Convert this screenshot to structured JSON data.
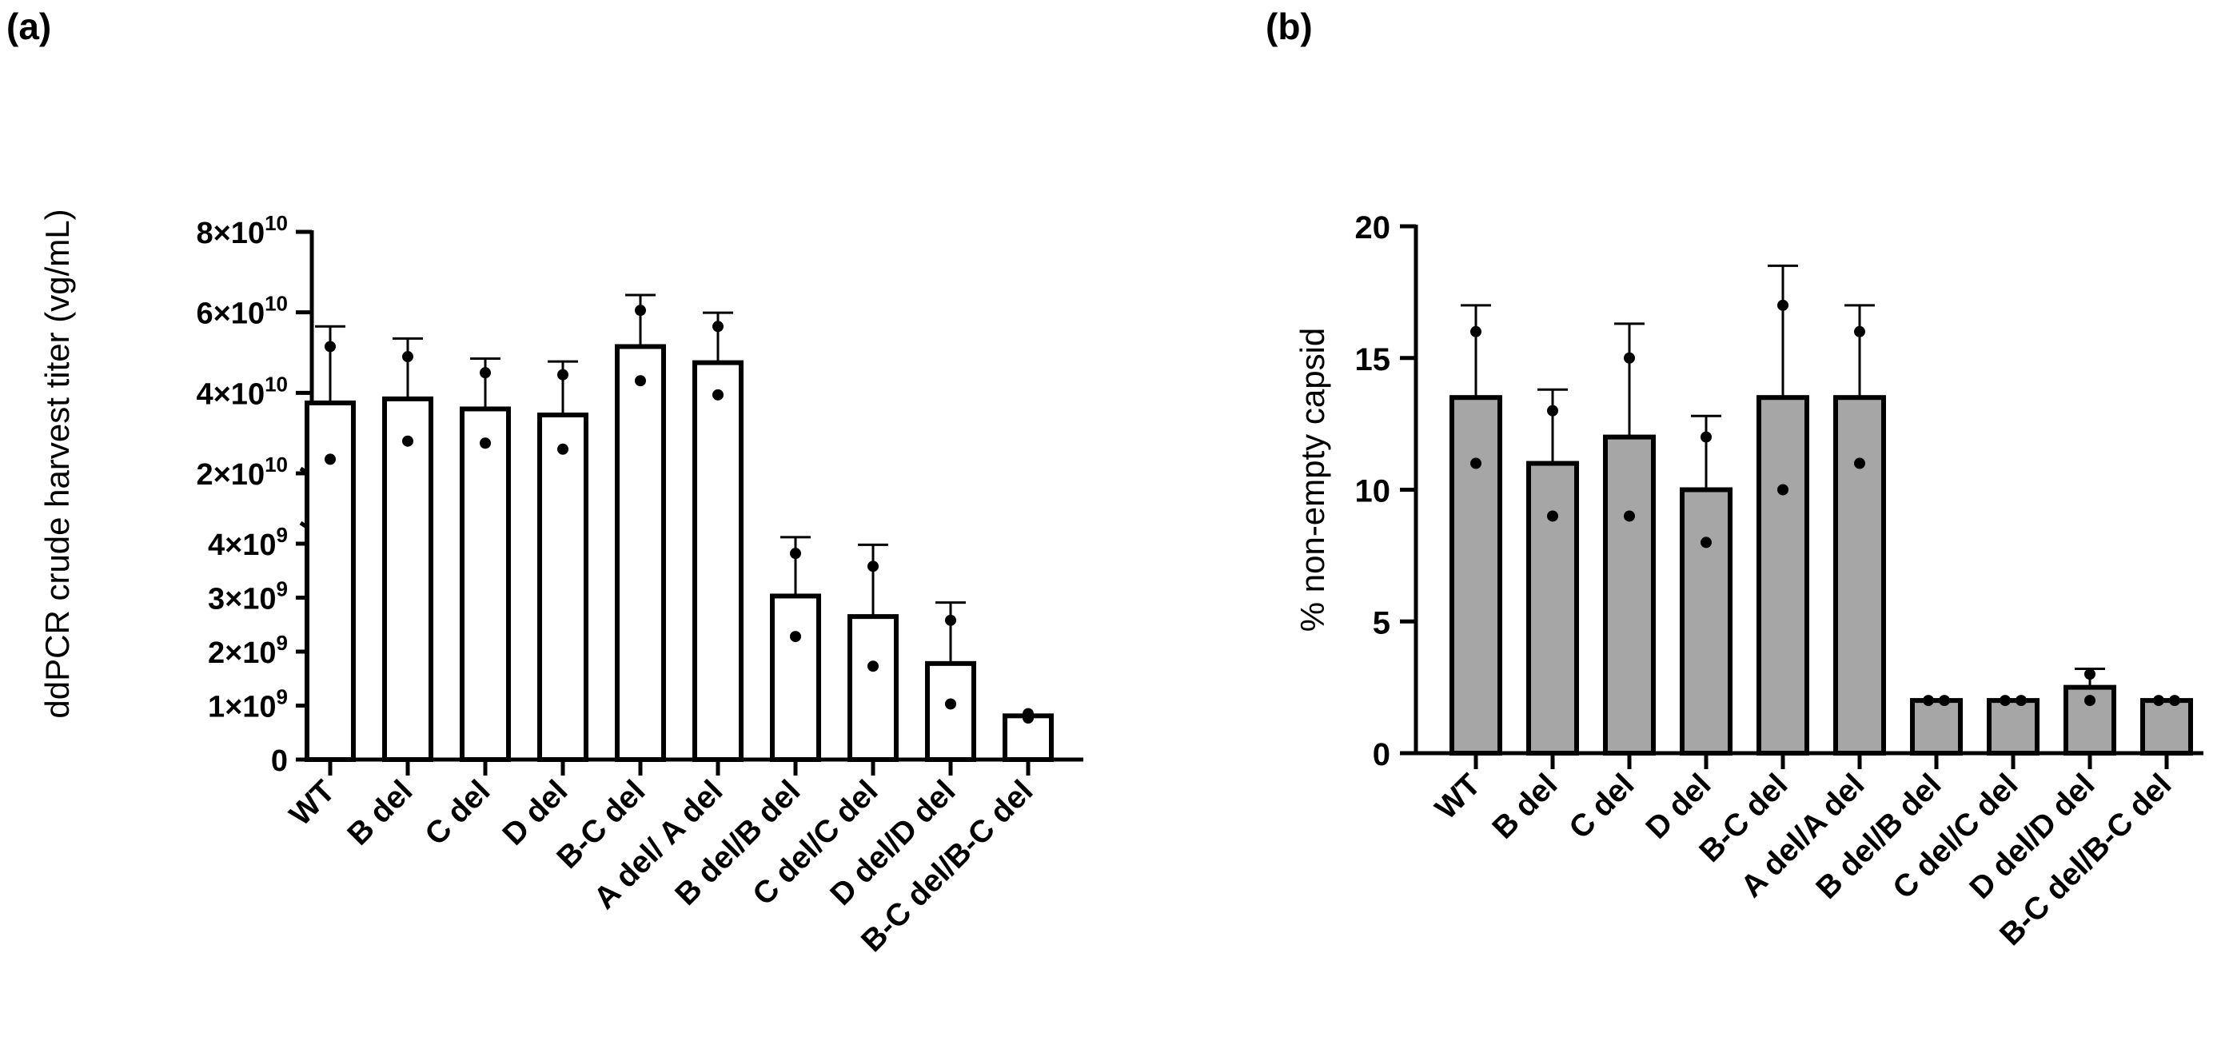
{
  "figure": {
    "label_a": "(a)",
    "label_b": "(b)"
  },
  "chart_data": [
    {
      "type": "bar",
      "panel": "(a)",
      "title": "",
      "ylabel": "ddPCR crude harvest titer (vg/mL)",
      "xlabel": "",
      "y_scale": "broken",
      "lower_segment": {
        "ylim": [
          0,
          4000000000
        ],
        "ticks": [
          0,
          1000000000,
          2000000000,
          3000000000,
          4000000000
        ]
      },
      "upper_segment": {
        "ylim": [
          20000000000,
          80000000000
        ],
        "ticks": [
          20000000000,
          40000000000,
          60000000000,
          80000000000
        ]
      },
      "tick_labels": [
        {
          "value": 0,
          "mantissa": "0",
          "exp": ""
        },
        {
          "value": 1000000000,
          "mantissa": "1×10",
          "exp": "9"
        },
        {
          "value": 2000000000,
          "mantissa": "2×10",
          "exp": "9"
        },
        {
          "value": 3000000000,
          "mantissa": "3×10",
          "exp": "9"
        },
        {
          "value": 4000000000,
          "mantissa": "4×10",
          "exp": "9"
        },
        {
          "value": 20000000000,
          "mantissa": "2×10",
          "exp": "10"
        },
        {
          "value": 40000000000,
          "mantissa": "4×10",
          "exp": "10"
        },
        {
          "value": 60000000000,
          "mantissa": "6×10",
          "exp": "10"
        },
        {
          "value": 80000000000,
          "mantissa": "8×10",
          "exp": "10"
        }
      ],
      "categories": [
        "WT",
        "B del",
        "C del",
        "D del",
        "B-C del",
        "A del/ A del",
        "B del/B del",
        "C del/C del",
        "D del/D del",
        "B-C del/B-C del"
      ],
      "values": [
        37500000000,
        38500000000,
        36000000000,
        34500000000,
        51500000000,
        47500000000,
        3030000000,
        2650000000,
        1780000000,
        810000000
      ],
      "errors": [
        19000000000,
        15000000000,
        12500000000,
        13300000000,
        12800000000,
        12400000000,
        1100000000,
        1330000000,
        1130000000,
        0
      ],
      "points": [
        [
          51500000000,
          23500000000
        ],
        [
          49000000000,
          28000000000
        ],
        [
          45000000000,
          27500000000
        ],
        [
          44500000000,
          26000000000
        ],
        [
          60500000000,
          43000000000
        ],
        [
          56500000000,
          39500000000
        ],
        [
          3820000000,
          2280000000
        ],
        [
          3580000000,
          1730000000
        ],
        [
          2580000000,
          1030000000
        ],
        [
          850000000,
          770000000
        ]
      ],
      "bar_fill": "#ffffff",
      "bar_stroke": "#000000"
    },
    {
      "type": "bar",
      "panel": "(b)",
      "title": "",
      "ylabel": "% non-empty capsid",
      "xlabel": "",
      "ylim": [
        0,
        20
      ],
      "yticks": [
        0,
        5,
        10,
        15,
        20
      ],
      "ytick_labels": [
        "0",
        "5",
        "10",
        "15",
        "20"
      ],
      "categories": [
        "WT",
        "B del",
        "C del",
        "D del",
        "B-C del",
        "A del/A del",
        "B del/B del",
        "C del/C del",
        "D del/D del",
        "B-C del/B-C del"
      ],
      "values": [
        13.5,
        11,
        12,
        10,
        13.5,
        13.5,
        2,
        2,
        2.5,
        2
      ],
      "errors": [
        3.5,
        2.8,
        4.3,
        2.8,
        5,
        3.5,
        0,
        0,
        0.7,
        0
      ],
      "points": [
        [
          16,
          11
        ],
        [
          13,
          9
        ],
        [
          15,
          9
        ],
        [
          12,
          8
        ],
        [
          17,
          10
        ],
        [
          16,
          11
        ],
        [
          2,
          2
        ],
        [
          2,
          2
        ],
        [
          3,
          2
        ],
        [
          2,
          2
        ]
      ],
      "bar_fill": "#a6a6a6",
      "bar_stroke": "#000000"
    }
  ]
}
